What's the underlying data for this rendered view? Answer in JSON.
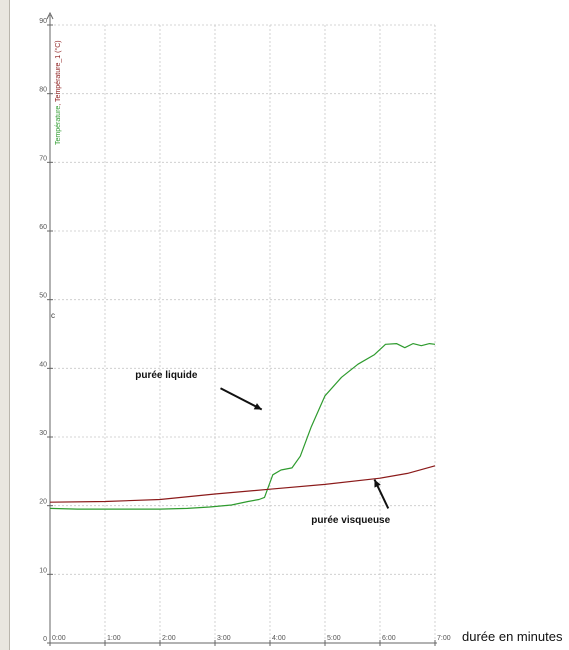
{
  "chart_data": {
    "type": "line",
    "xlabel": "durée en minutes",
    "ylabel": {
      "part1": "Température",
      "sep": ", ",
      "part2": "Température_1",
      "unit": " (°C)"
    },
    "xlim": [
      0,
      7
    ],
    "ylim": [
      0,
      90
    ],
    "x_ticks": [
      {
        "value": 0,
        "label": "0:00"
      },
      {
        "value": 1,
        "label": "1:00"
      },
      {
        "value": 2,
        "label": "2:00"
      },
      {
        "value": 3,
        "label": "3:00"
      },
      {
        "value": 4,
        "label": "4:00"
      },
      {
        "value": 5,
        "label": "5:00"
      },
      {
        "value": 6,
        "label": "6:00"
      },
      {
        "value": 7,
        "label": "7:00"
      }
    ],
    "y_ticks": [
      {
        "value": 0,
        "label": "0"
      },
      {
        "value": 10,
        "label": "10"
      },
      {
        "value": 20,
        "label": "20"
      },
      {
        "value": 30,
        "label": "30"
      },
      {
        "value": 40,
        "label": "40"
      },
      {
        "value": 50,
        "label": "50"
      },
      {
        "value": 60,
        "label": "60"
      },
      {
        "value": 70,
        "label": "70"
      },
      {
        "value": 80,
        "label": "80"
      },
      {
        "value": 90,
        "label": "90"
      }
    ],
    "grid": true,
    "series": [
      {
        "name": "Température",
        "color": "#2e9b2e",
        "x": [
          0,
          0.5,
          1,
          1.5,
          2,
          2.5,
          2.9,
          3.3,
          3.6,
          3.8,
          3.9,
          4.05,
          4.2,
          4.4,
          4.55,
          4.75,
          5.0,
          5.3,
          5.6,
          5.9,
          6.1,
          6.3,
          6.45,
          6.6,
          6.75,
          6.9,
          7.0
        ],
        "y": [
          19.6,
          19.5,
          19.5,
          19.5,
          19.5,
          19.6,
          19.8,
          20.1,
          20.6,
          20.9,
          21.2,
          24.5,
          25.2,
          25.5,
          27.2,
          31.5,
          36.0,
          38.7,
          40.6,
          42.0,
          43.5,
          43.6,
          43.0,
          43.6,
          43.3,
          43.6,
          43.5
        ]
      },
      {
        "name": "Température_1",
        "color": "#8b1a1a",
        "x": [
          0,
          1,
          2,
          3,
          4,
          5,
          6,
          6.5,
          7.0
        ],
        "y": [
          20.5,
          20.6,
          20.9,
          21.7,
          22.4,
          23.1,
          24.0,
          24.7,
          25.8
        ]
      }
    ],
    "annotations": [
      {
        "text": "purée liquide",
        "x": 1.55,
        "y": 38.6,
        "arrow_from": [
          3.1,
          37.1
        ],
        "arrow_to": [
          3.85,
          34.0
        ]
      },
      {
        "text": "purée visqueuse",
        "x": 4.75,
        "y": 17.5,
        "arrow_from": [
          6.15,
          19.6
        ],
        "arrow_to": [
          5.9,
          23.8
        ]
      }
    ],
    "axis_marker": "c"
  }
}
